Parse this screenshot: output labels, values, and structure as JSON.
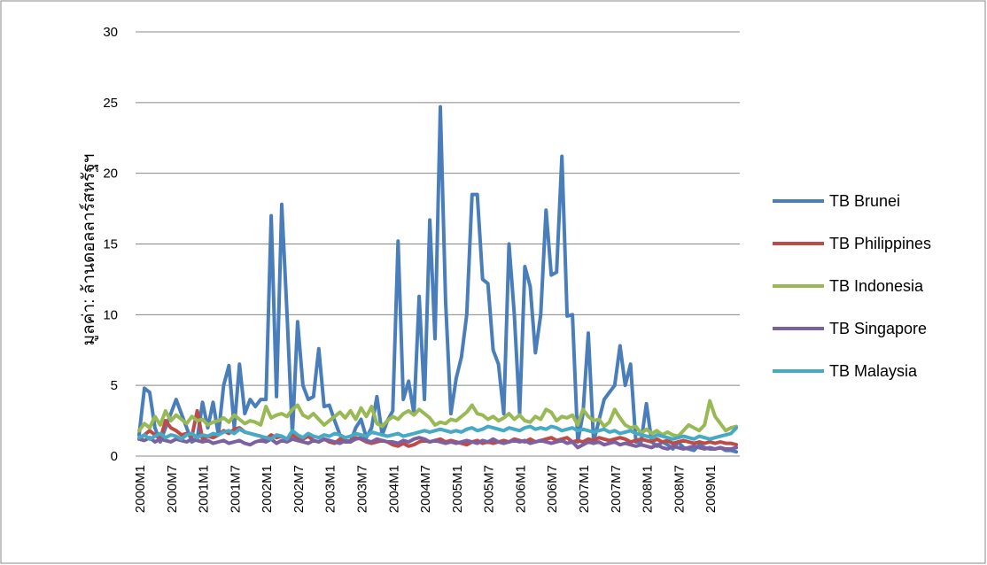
{
  "chart_data": {
    "type": "line",
    "y_label": "มูลค่า: ล้านดอลลาร์สหรัฐฯ",
    "ylim": [
      0,
      30
    ],
    "yticks": [
      0,
      5,
      10,
      15,
      20,
      25,
      30
    ],
    "grid": true,
    "legend": "right",
    "categories": [
      "2000M1",
      null,
      null,
      null,
      null,
      null,
      "2000M7",
      null,
      null,
      null,
      null,
      null,
      "2001M1",
      null,
      null,
      null,
      null,
      null,
      "2001M7",
      null,
      null,
      null,
      null,
      null,
      "2002M1",
      null,
      null,
      null,
      null,
      null,
      "2002M7",
      null,
      null,
      null,
      null,
      null,
      "2003M1",
      null,
      null,
      null,
      null,
      null,
      "2003M7",
      null,
      null,
      null,
      null,
      null,
      "2004M1",
      null,
      null,
      null,
      null,
      null,
      "2004M7",
      null,
      null,
      null,
      null,
      null,
      "2005M1",
      null,
      null,
      null,
      null,
      null,
      "2005M7",
      null,
      null,
      null,
      null,
      null,
      "2006M1",
      null,
      null,
      null,
      null,
      null,
      "2006M7",
      null,
      null,
      null,
      null,
      null,
      "2007M1",
      null,
      null,
      null,
      null,
      null,
      "2007M7",
      null,
      null,
      null,
      null,
      null,
      "2008M1",
      null,
      null,
      null,
      null,
      null,
      "2008M7",
      null,
      null,
      null,
      null,
      null,
      "2009M1",
      null,
      null,
      null,
      null,
      null
    ],
    "series": [
      {
        "name": "TB Brunei",
        "color": "#4a7ebb",
        "values": [
          1.5,
          4.8,
          4.5,
          2,
          1,
          2,
          3,
          4,
          3,
          2,
          1,
          1.2,
          3.8,
          2,
          3.8,
          1.5,
          5,
          6.4,
          2,
          6.5,
          3,
          4,
          3.5,
          4,
          4,
          17,
          4.2,
          17.8,
          10,
          1.5,
          9.5,
          5,
          4,
          4.2,
          7.6,
          3.5,
          3.6,
          2.5,
          1.5,
          1,
          1,
          2,
          2.6,
          1.3,
          2,
          4.2,
          1.5,
          2.5,
          3.2,
          15.2,
          4,
          5.3,
          3,
          11.3,
          4,
          16.7,
          8.3,
          24.7,
          11,
          3,
          5.5,
          7,
          10,
          18.5,
          18.5,
          12.5,
          12.2,
          7.5,
          6.5,
          3,
          15,
          10,
          3,
          13.4,
          12,
          7.3,
          10,
          17.4,
          12.8,
          13,
          21.2,
          9.9,
          10,
          1,
          3,
          8.7,
          1,
          2.5,
          4,
          4.5,
          5,
          7.8,
          5,
          6.5,
          1,
          1,
          3.7,
          1,
          0.7,
          1,
          0.8,
          0.5,
          1,
          0.6,
          0.5,
          0.4,
          0.8,
          0.6,
          0.5,
          0.5,
          0.6,
          0.4,
          0.4,
          0.3
        ]
      },
      {
        "name": "TB Philippines",
        "color": "#be4b48",
        "values": [
          1.2,
          1.5,
          1.8,
          1.5,
          1.2,
          2.5,
          2,
          1.8,
          1.5,
          1.6,
          1.4,
          3.2,
          1.2,
          1.4,
          1.3,
          1.5,
          1.8,
          1.6,
          1.9,
          2,
          1.7,
          1.6,
          1.5,
          1.4,
          1.2,
          1.5,
          1.3,
          1.4,
          1.2,
          1.5,
          1.3,
          1.2,
          1.4,
          1.1,
          1,
          1.2,
          1,
          0.9,
          1.2,
          1,
          1.1,
          1.3,
          1.2,
          1,
          0.9,
          1,
          1.1,
          1,
          0.8,
          0.7,
          0.9,
          0.7,
          0.8,
          1,
          1.1,
          1,
          1.1,
          1.2,
          1,
          1.1,
          1,
          0.9,
          0.8,
          1,
          1.1,
          0.9,
          1,
          0.9,
          1,
          1.1,
          1,
          1.2,
          1.1,
          1,
          1.2,
          1,
          1.1,
          1.2,
          1.3,
          1.1,
          1.2,
          1.3,
          1,
          1.1,
          1,
          1.2,
          1.1,
          1.3,
          1.2,
          1.1,
          1.2,
          1.3,
          1.2,
          1,
          1.1,
          1.2,
          1.1,
          1,
          1.2,
          1,
          1.1,
          0.9,
          1,
          1.1,
          1,
          0.9,
          1,
          0.9,
          1,
          0.9,
          1,
          0.9,
          0.9,
          0.8
        ]
      },
      {
        "name": "TB Indonesia",
        "color": "#98b954",
        "values": [
          1.8,
          2.3,
          2,
          2.8,
          2.2,
          3.2,
          2.5,
          2.9,
          2.6,
          2.3,
          2.8,
          2.5,
          2.6,
          2.2,
          2.4,
          2.5,
          2.7,
          2.4,
          2.9,
          2.6,
          2.3,
          2.5,
          2.4,
          2.2,
          3.5,
          2.7,
          2.9,
          3,
          2.8,
          3.3,
          3.6,
          2.9,
          2.7,
          3,
          2.6,
          2.2,
          2.5,
          2.8,
          3.1,
          2.7,
          3.2,
          2.6,
          3.4,
          2.8,
          3.5,
          2.3,
          2.1,
          2.5,
          2.8,
          2.6,
          3,
          3.2,
          2.9,
          3.3,
          3,
          2.7,
          2.2,
          2.4,
          2.3,
          2.6,
          2.5,
          2.8,
          3.1,
          3.6,
          3,
          2.9,
          2.6,
          2.8,
          2.5,
          2.7,
          3,
          2.6,
          2.9,
          2.5,
          2.4,
          2.8,
          2.6,
          3.3,
          3.1,
          2.5,
          2.8,
          2.7,
          2.9,
          2.2,
          3.3,
          2.8,
          2.5,
          2.6,
          2.1,
          2.4,
          3.3,
          2.7,
          2.2,
          2,
          2.1,
          1.6,
          1.9,
          1.6,
          1.8,
          1.5,
          1.7,
          1.5,
          1.4,
          1.8,
          2.2,
          2,
          1.8,
          2.2,
          3.9,
          2.8,
          2.3,
          1.8,
          2,
          2.1
        ]
      },
      {
        "name": "TB Singapore",
        "color": "#7d60a0",
        "values": [
          1.2,
          1.1,
          1.3,
          1,
          1.2,
          1.1,
          1,
          1.2,
          1.1,
          1,
          1.2,
          1.1,
          1,
          1.1,
          0.9,
          1,
          1.1,
          0.9,
          1,
          1.1,
          0.9,
          0.8,
          1,
          1.1,
          1,
          1.2,
          0.9,
          1.1,
          1,
          1.2,
          1.1,
          1,
          0.9,
          1.1,
          1,
          1.2,
          1.1,
          1,
          0.9,
          1.1,
          1,
          1.2,
          1.3,
          1.1,
          1,
          1.2,
          1.1,
          1,
          1,
          0.9,
          1.1,
          1,
          1.2,
          1.3,
          1.2,
          1,
          1.1,
          1,
          0.9,
          1,
          0.9,
          1,
          1.1,
          1,
          0.9,
          1.1,
          1,
          1.2,
          1,
          0.9,
          1,
          1.1,
          1,
          1.1,
          0.9,
          1,
          1.1,
          1,
          0.9,
          1,
          1.1,
          0.9,
          1,
          0.6,
          0.8,
          1,
          0.9,
          1,
          0.8,
          0.9,
          1,
          0.8,
          0.9,
          0.8,
          0.7,
          0.8,
          0.7,
          0.6,
          0.8,
          0.6,
          0.5,
          0.7,
          0.6,
          0.5,
          0.6,
          0.7,
          0.6,
          0.5,
          0.6,
          0.5,
          0.6,
          0.5,
          0.5,
          0.6
        ]
      },
      {
        "name": "TB Malaysia",
        "color": "#46aac5",
        "values": [
          1.3,
          1.5,
          1.2,
          1.4,
          1.6,
          1.3,
          1.5,
          1.4,
          1.2,
          1.5,
          1.6,
          1.3,
          1.5,
          1.4,
          1.6,
          1.5,
          1.7,
          1.8,
          1.6,
          1.9,
          1.7,
          1.6,
          1.5,
          1.4,
          1.3,
          1.2,
          1.5,
          1.4,
          1.2,
          1.8,
          1.5,
          1.3,
          1.6,
          1.4,
          1.3,
          1.5,
          1.4,
          1.6,
          1.5,
          1.3,
          1.4,
          1.6,
          1.5,
          1.4,
          1.7,
          1.6,
          1.5,
          1.4,
          1.5,
          1.6,
          1.4,
          1.5,
          1.6,
          1.7,
          1.8,
          1.7,
          1.8,
          1.9,
          1.8,
          1.7,
          1.8,
          1.7,
          1.9,
          2,
          1.8,
          1.9,
          2.1,
          2,
          1.9,
          1.8,
          2,
          1.9,
          1.8,
          2,
          2.1,
          1.9,
          2,
          1.9,
          2.1,
          2,
          1.8,
          1.9,
          2,
          1.8,
          1.9,
          1.8,
          1.7,
          1.8,
          1.9,
          1.7,
          1.8,
          1.6,
          1.7,
          1.8,
          1.6,
          1.5,
          1.4,
          1.3,
          1.5,
          1.4,
          1.3,
          1.2,
          1.3,
          1.4,
          1.3,
          1.2,
          1.4,
          1.3,
          1.2,
          1.3,
          1.4,
          1.5,
          1.6,
          2
        ]
      }
    ]
  }
}
